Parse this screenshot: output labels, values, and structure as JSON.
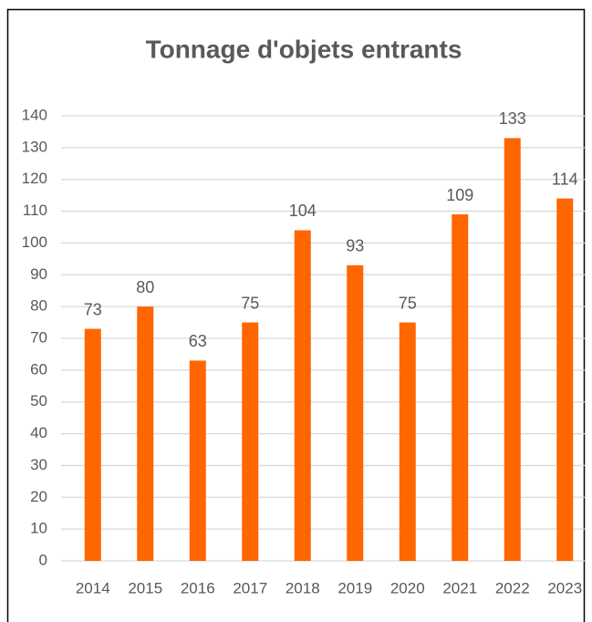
{
  "chart_data": {
    "type": "bar",
    "title": "Tonnage d'objets entrants",
    "categories": [
      "2014",
      "2015",
      "2016",
      "2017",
      "2018",
      "2019",
      "2020",
      "2021",
      "2022",
      "2023"
    ],
    "values": [
      73,
      80,
      63,
      75,
      104,
      93,
      75,
      109,
      133,
      114
    ],
    "color": "#ff6600",
    "ylim": [
      0,
      140
    ],
    "yticks": [
      0,
      10,
      20,
      30,
      40,
      50,
      60,
      70,
      80,
      90,
      100,
      110,
      120,
      130,
      140
    ],
    "grid": true
  }
}
